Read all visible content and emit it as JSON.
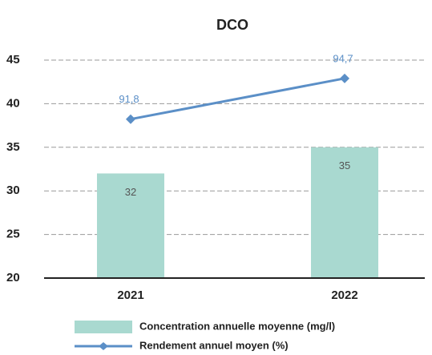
{
  "chart_data": {
    "type": "bar-line",
    "title": "DCO",
    "categories": [
      "2021",
      "2022"
    ],
    "series": [
      {
        "name": "Concentration annuelle moyenne (mg/l)",
        "type": "bar",
        "color": "#a9d9d0",
        "values": [
          32,
          35
        ]
      },
      {
        "name": "Rendement annuel moyen (%)",
        "type": "line",
        "color": "#5b8fc7",
        "axis": "y2",
        "values": [
          91.8,
          94.7
        ],
        "value_labels": [
          "91,8",
          "94,7"
        ]
      }
    ],
    "ylim": [
      20,
      45
    ],
    "yticks": [
      20,
      25,
      30,
      35,
      40,
      45
    ],
    "y2lim": [
      80.5,
      96
    ],
    "grid": true
  }
}
